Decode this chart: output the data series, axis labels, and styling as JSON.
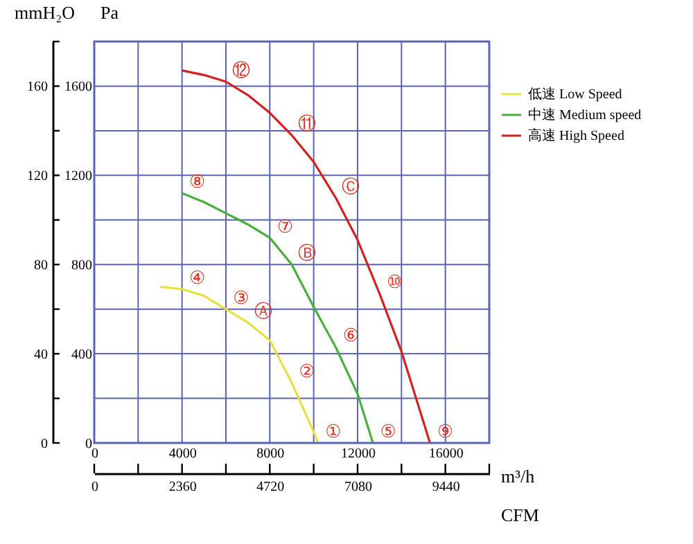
{
  "chart_data": {
    "type": "line",
    "xlabel": "m³/h",
    "x2label": "CFM",
    "ylabel": "mmH₂O",
    "y2label": "Pa",
    "xlim": [
      0,
      18000
    ],
    "xticks": [
      0,
      {
        "value": 2000,
        "label": null
      },
      4000,
      {
        "value": 6000,
        "label": null
      },
      8000,
      {
        "value": 10000,
        "label": null
      },
      12000,
      {
        "value": 14000,
        "label": null
      },
      16000,
      {
        "value": 18000,
        "label": null
      }
    ],
    "x2lim": [
      0,
      10620
    ],
    "x2ticks": [
      0,
      {
        "value": 1180,
        "label": null
      },
      2360,
      {
        "value": 3540,
        "label": null
      },
      4720,
      {
        "value": 5900,
        "label": null
      },
      7080,
      {
        "value": 8260,
        "label": null
      },
      9440,
      {
        "value": 10620,
        "label": null
      }
    ],
    "ylim": [
      0,
      180
    ],
    "yticks": [
      0,
      {
        "value": 20,
        "label": null
      },
      40,
      {
        "value": 60,
        "label": null
      },
      80,
      {
        "value": 100,
        "label": null
      },
      120,
      {
        "value": 140,
        "label": null
      },
      160,
      {
        "value": 180,
        "label": null
      }
    ],
    "y2lim": [
      0,
      1800
    ],
    "y2ticks": [
      0,
      400,
      800,
      1200,
      1600
    ],
    "grid": true,
    "legend": "top right",
    "line_style": "solid",
    "marker": "none",
    "series": [
      {
        "name": "低速 Low Speed",
        "color": "#e8e040",
        "x": [
          3000,
          4000,
          5000,
          6000,
          7000,
          8000,
          9000,
          10000,
          10200
        ],
        "values": [
          70,
          69,
          66,
          60,
          54,
          46,
          27,
          5,
          0
        ]
      },
      {
        "name": "中速 Medium speed",
        "color": "#4aae3a",
        "x": [
          4000,
          5000,
          6000,
          7000,
          8000,
          9000,
          10000,
          11000,
          12000,
          12700
        ],
        "values": [
          112,
          108,
          103,
          98,
          92,
          80,
          61,
          43,
          22,
          0
        ]
      },
      {
        "name": "高速 High Speed",
        "color": "#d42020",
        "x": [
          4000,
          5000,
          6000,
          7000,
          8000,
          9000,
          10000,
          11000,
          12000,
          13000,
          14000,
          15300
        ],
        "values": [
          167,
          165,
          162,
          156,
          148,
          138,
          126,
          110,
          91,
          67,
          41,
          0
        ]
      }
    ],
    "annotations": [
      {
        "text": "①",
        "x": 10200,
        "y": 0
      },
      {
        "text": "②",
        "x": 9000,
        "y": 27
      },
      {
        "text": "③",
        "x": 6000,
        "y": 60
      },
      {
        "text": "④",
        "x": 4000,
        "y": 69
      },
      {
        "text": "⑤",
        "x": 12700,
        "y": 0
      },
      {
        "text": "⑥",
        "x": 11000,
        "y": 43
      },
      {
        "text": "⑦",
        "x": 8000,
        "y": 92
      },
      {
        "text": "⑧",
        "x": 4000,
        "y": 112
      },
      {
        "text": "⑨",
        "x": 15300,
        "y": 0
      },
      {
        "text": "⑩",
        "x": 13000,
        "y": 67
      },
      {
        "text": "⑪",
        "x": 9000,
        "y": 138
      },
      {
        "text": "⑫",
        "x": 6000,
        "y": 162
      },
      {
        "text": "Ⓐ",
        "x": 7000,
        "y": 54
      },
      {
        "text": "Ⓑ",
        "x": 9000,
        "y": 80
      },
      {
        "text": "Ⓒ",
        "x": 11000,
        "y": 110
      }
    ]
  }
}
